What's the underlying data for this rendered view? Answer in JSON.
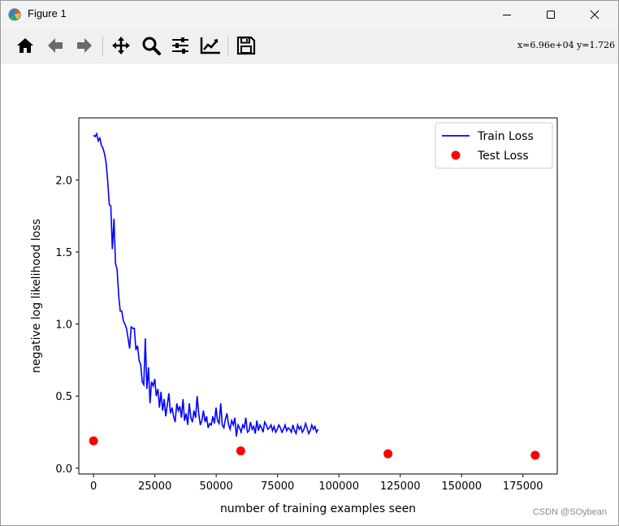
{
  "window": {
    "title": "Figure 1",
    "controls": {
      "minimize": "minimize",
      "maximize": "maximize",
      "close": "close"
    }
  },
  "toolbar": {
    "buttons": [
      {
        "icon": "home-icon"
      },
      {
        "icon": "arrow-left-icon"
      },
      {
        "icon": "arrow-right-icon"
      },
      {
        "icon": "move-icon"
      },
      {
        "icon": "zoom-icon"
      },
      {
        "icon": "sliders-icon"
      },
      {
        "icon": "line-chart-icon"
      },
      {
        "icon": "save-icon"
      }
    ],
    "coords": "x=6.96e+04  y=1.726"
  },
  "watermark": "CSDN @SOybean",
  "chart_data": {
    "type": "line",
    "title": "",
    "xlabel": "number of training examples seen",
    "ylabel": "negative log likelihood loss",
    "xlim": [
      -6000,
      189000
    ],
    "ylim": [
      -0.04,
      2.43
    ],
    "xticks": [
      0,
      25000,
      50000,
      75000,
      100000,
      125000,
      150000,
      175000
    ],
    "xtick_labels": [
      "0",
      "25000",
      "50000",
      "75000",
      "100000",
      "125000",
      "150000",
      "175000"
    ],
    "yticks": [
      0.0,
      0.5,
      1.0,
      1.5,
      2.0
    ],
    "ytick_labels": [
      "0.0",
      "0.5",
      "1.0",
      "1.5",
      "2.0"
    ],
    "grid": false,
    "legend": {
      "position": "top-right",
      "entries": [
        "Train Loss",
        "Test Loss"
      ]
    },
    "series": [
      {
        "name": "Train Loss",
        "kind": "line",
        "color": "#0000ff",
        "x_start": 0,
        "x_step": 640,
        "y": [
          2.31,
          2.3,
          2.32,
          2.27,
          2.29,
          2.24,
          2.22,
          2.18,
          2.12,
          2.0,
          1.83,
          1.82,
          1.52,
          1.73,
          1.42,
          1.38,
          1.2,
          1.09,
          1.09,
          1.02,
          1.0,
          0.97,
          0.9,
          0.83,
          0.98,
          0.97,
          0.97,
          0.82,
          0.85,
          0.75,
          0.72,
          0.6,
          0.58,
          0.9,
          0.55,
          0.7,
          0.45,
          0.6,
          0.57,
          0.62,
          0.5,
          0.55,
          0.42,
          0.53,
          0.4,
          0.48,
          0.36,
          0.44,
          0.52,
          0.38,
          0.42,
          0.36,
          0.32,
          0.45,
          0.4,
          0.43,
          0.35,
          0.48,
          0.33,
          0.38,
          0.3,
          0.45,
          0.35,
          0.32,
          0.4,
          0.35,
          0.5,
          0.38,
          0.3,
          0.33,
          0.4,
          0.32,
          0.36,
          0.28,
          0.31,
          0.3,
          0.36,
          0.31,
          0.42,
          0.33,
          0.31,
          0.45,
          0.3,
          0.28,
          0.34,
          0.38,
          0.3,
          0.27,
          0.33,
          0.3,
          0.35,
          0.22,
          0.3,
          0.28,
          0.25,
          0.3,
          0.28,
          0.35,
          0.25,
          0.26,
          0.32,
          0.27,
          0.29,
          0.24,
          0.33,
          0.26,
          0.3,
          0.28,
          0.25,
          0.32,
          0.3,
          0.27,
          0.28,
          0.3,
          0.26,
          0.29,
          0.25,
          0.27,
          0.3,
          0.28,
          0.25,
          0.27,
          0.3,
          0.26,
          0.28,
          0.27,
          0.25,
          0.3,
          0.26,
          0.24,
          0.3,
          0.27,
          0.29,
          0.25,
          0.27,
          0.31,
          0.28,
          0.24,
          0.26,
          0.3,
          0.27,
          0.29,
          0.25,
          0.27
        ],
        "note_shape": "noisy-decay"
      },
      {
        "name": "Test Loss",
        "kind": "scatter",
        "color": "#ff0000",
        "x": [
          0,
          60000,
          120000,
          180000
        ],
        "y": [
          0.19,
          0.12,
          0.1,
          0.09
        ]
      }
    ]
  }
}
